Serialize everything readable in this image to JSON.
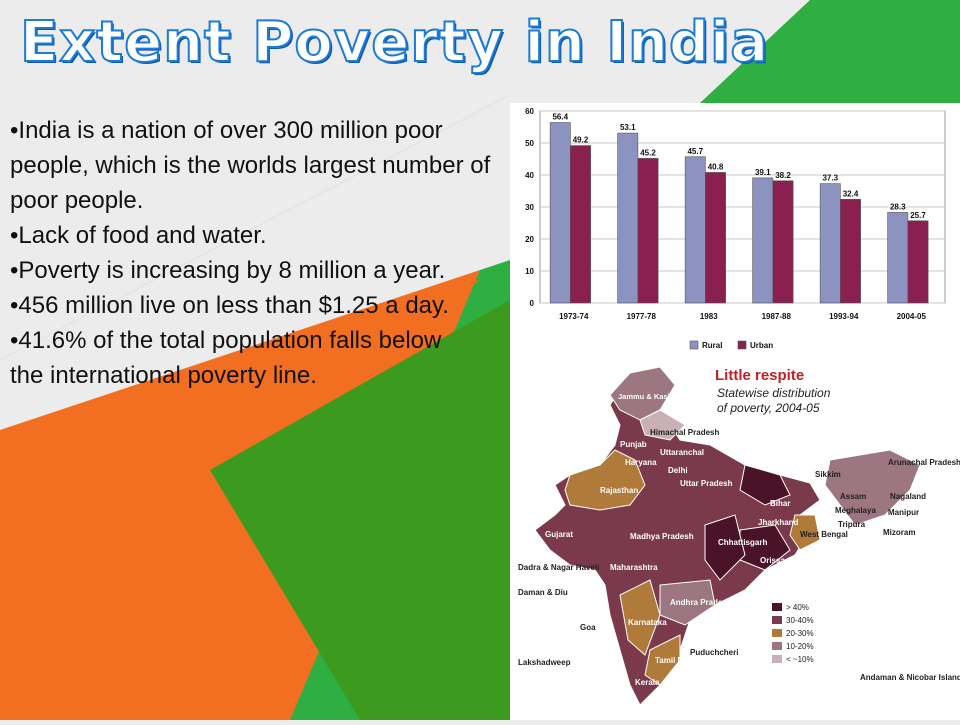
{
  "colors": {
    "orange": "#f26f21",
    "green_dark": "#3c9a1f",
    "green_light": "#2fae41",
    "rural": "#8d93c0",
    "urban": "#8a2050",
    "title_outline": "#1c7bd6"
  },
  "title": "Extent Poverty in India",
  "bullets": [
    "India is a nation of over 300 million poor people, which is the worlds largest number of poor people.",
    "Lack of food and water.",
    "Poverty is increasing by 8 million a year.",
    "456 million live on less than $1.25 a day.",
    "41.6% of the total population falls below",
    "the international poverty line."
  ],
  "chart_data": {
    "type": "bar",
    "categories": [
      "1973-74",
      "1977-78",
      "1983",
      "1987-88",
      "1993-94",
      "2004-05"
    ],
    "series": [
      {
        "name": "Rural",
        "values": [
          56.4,
          53.1,
          45.7,
          39.1,
          37.3,
          28.3
        ],
        "labels": [
          "56.4",
          "53.1",
          "45.7",
          "39.1",
          "37.3",
          "28.3"
        ]
      },
      {
        "name": "Urban",
        "values": [
          49.2,
          45.2,
          40.8,
          38.2,
          32.4,
          25.7
        ],
        "labels": [
          "49.2",
          "45.2",
          "40.8",
          "38.2",
          "32.4",
          "25.7"
        ]
      }
    ],
    "yticks": [
      "0",
      "10",
      "20",
      "30",
      "40",
      "50",
      "60"
    ],
    "ylim": [
      0,
      60
    ],
    "legend_position": "bottom",
    "grid": true
  },
  "map": {
    "title": "Little respite",
    "subtitle_line1": "Statewise distribution",
    "subtitle_line2": "of poverty, 2004-05",
    "legend": [
      {
        "label": "> 40%",
        "color": "#4a1328"
      },
      {
        "label": "30-40%",
        "color": "#7a3a4c"
      },
      {
        "label": "20-30%",
        "color": "#b07a3a"
      },
      {
        "label": "10-20%",
        "color": "#9c7680"
      },
      {
        "label": "< ~10%",
        "color": "#c9b0b5"
      }
    ],
    "states": [
      "Jammu & Kashmir",
      "Himachal Pradesh",
      "Punjab",
      "Uttaranchal",
      "Haryana",
      "Delhi",
      "Uttar Pradesh",
      "Rajasthan",
      "Sikkim",
      "Arunachal Pradesh",
      "Assam",
      "Nagaland",
      "Meghalaya",
      "Manipur",
      "Tripura",
      "Mizoram",
      "Bihar",
      "Jharkhand",
      "West Bengal",
      "Gujarat",
      "Madhya Pradesh",
      "Chhattisgarh",
      "Orissa",
      "Dadra & Nagar Haveli",
      "Daman & Diu",
      "Maharashtra",
      "Andhra Pradesh",
      "Goa",
      "Karnataka",
      "Lakshadweep",
      "Tamil Nadu",
      "Puduchcheri",
      "Kerala",
      "Andaman & Nicobar Island"
    ]
  }
}
